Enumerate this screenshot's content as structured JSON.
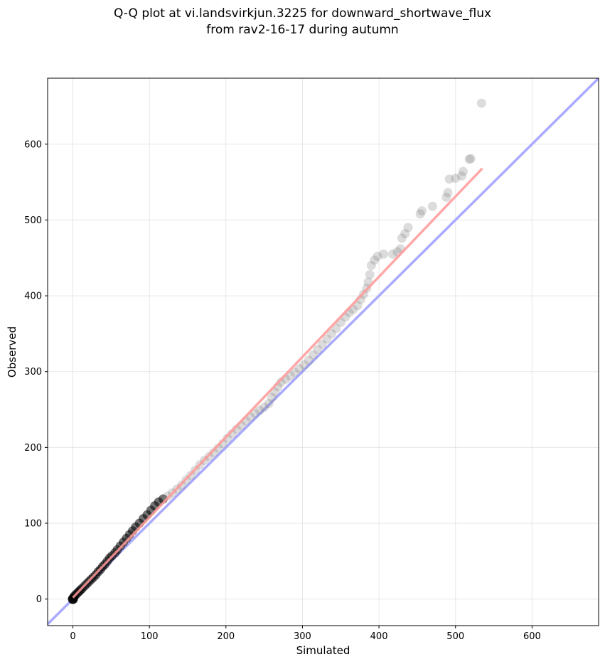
{
  "chart_data": {
    "type": "scatter",
    "title": "Q-Q plot at vi.landsvirkjun.3225 for downward_shortwave_flux",
    "subtitle": "from rav2-16-17 during autumn",
    "xlabel": "Simulated",
    "ylabel": "Observed",
    "xlim": [
      -33,
      687
    ],
    "ylim": [
      -35,
      687
    ],
    "xticks": [
      0,
      100,
      200,
      300,
      400,
      500,
      600
    ],
    "yticks": [
      0,
      100,
      200,
      300,
      400,
      500,
      600
    ],
    "grid": true,
    "colors": {
      "points_dense": "#000000",
      "points_sparse": "#808080",
      "identity_line": "#aaaaff",
      "fit_line": "#ff9999"
    },
    "identity_line": {
      "x": [
        -33,
        687
      ],
      "y": [
        -33,
        687
      ]
    },
    "fit_line": {
      "x": [
        0,
        535
      ],
      "y": [
        2,
        568
      ]
    },
    "points": [
      [
        0,
        0
      ],
      [
        1,
        2
      ],
      [
        2,
        4
      ],
      [
        4,
        6
      ],
      [
        6,
        8
      ],
      [
        8,
        10
      ],
      [
        10,
        12
      ],
      [
        12,
        14
      ],
      [
        15,
        17
      ],
      [
        18,
        20
      ],
      [
        21,
        23
      ],
      [
        24,
        26
      ],
      [
        27,
        29
      ],
      [
        30,
        32
      ],
      [
        33,
        36
      ],
      [
        36,
        39
      ],
      [
        39,
        43
      ],
      [
        42,
        46
      ],
      [
        45,
        50
      ],
      [
        48,
        54
      ],
      [
        51,
        57
      ],
      [
        55,
        61
      ],
      [
        58,
        65
      ],
      [
        62,
        70
      ],
      [
        66,
        75
      ],
      [
        70,
        80
      ],
      [
        74,
        85
      ],
      [
        78,
        90
      ],
      [
        82,
        95
      ],
      [
        87,
        100
      ],
      [
        92,
        106
      ],
      [
        97,
        111
      ],
      [
        102,
        117
      ],
      [
        107,
        123
      ],
      [
        112,
        128
      ],
      [
        118,
        132
      ],
      [
        124,
        136
      ],
      [
        130,
        140
      ],
      [
        136,
        145
      ],
      [
        142,
        150
      ],
      [
        148,
        157
      ],
      [
        154,
        163
      ],
      [
        160,
        170
      ],
      [
        166,
        177
      ],
      [
        172,
        183
      ],
      [
        178,
        188
      ],
      [
        184,
        193
      ],
      [
        190,
        199
      ],
      [
        196,
        205
      ],
      [
        202,
        212
      ],
      [
        208,
        218
      ],
      [
        214,
        224
      ],
      [
        220,
        229
      ],
      [
        226,
        235
      ],
      [
        232,
        240
      ],
      [
        238,
        245
      ],
      [
        244,
        249
      ],
      [
        250,
        253
      ],
      [
        256,
        258
      ],
      [
        260,
        266
      ],
      [
        264,
        273
      ],
      [
        268,
        280
      ],
      [
        272,
        286
      ],
      [
        278,
        290
      ],
      [
        284,
        294
      ],
      [
        290,
        299
      ],
      [
        296,
        304
      ],
      [
        302,
        309
      ],
      [
        308,
        315
      ],
      [
        314,
        322
      ],
      [
        320,
        329
      ],
      [
        326,
        336
      ],
      [
        332,
        343
      ],
      [
        338,
        350
      ],
      [
        344,
        357
      ],
      [
        350,
        365
      ],
      [
        356,
        372
      ],
      [
        361,
        378
      ],
      [
        366,
        382
      ],
      [
        372,
        387
      ],
      [
        376,
        395
      ],
      [
        380,
        402
      ],
      [
        384,
        410
      ],
      [
        386,
        418
      ],
      [
        388,
        428
      ],
      [
        390,
        440
      ],
      [
        394,
        447
      ],
      [
        398,
        452
      ],
      [
        406,
        455
      ],
      [
        418,
        455
      ],
      [
        424,
        458
      ],
      [
        428,
        462
      ],
      [
        430,
        476
      ],
      [
        434,
        482
      ],
      [
        438,
        490
      ],
      [
        454,
        508
      ],
      [
        456,
        512
      ],
      [
        470,
        518
      ],
      [
        488,
        530
      ],
      [
        490,
        536
      ],
      [
        492,
        554
      ],
      [
        500,
        555
      ],
      [
        508,
        558
      ],
      [
        510,
        564
      ],
      [
        518,
        580
      ],
      [
        520,
        581
      ],
      [
        534,
        654
      ]
    ]
  }
}
